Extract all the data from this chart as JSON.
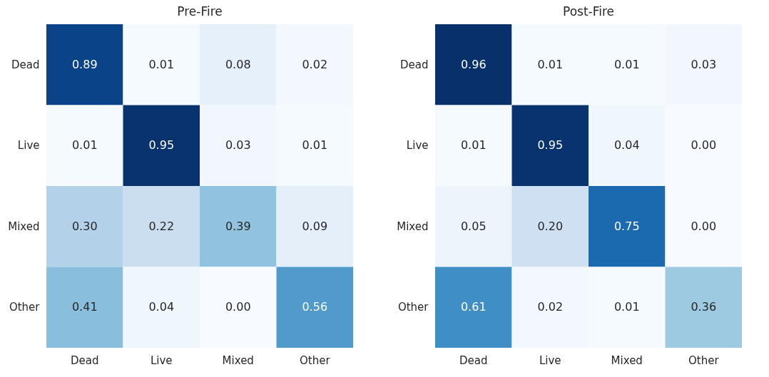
{
  "chart_data": [
    {
      "type": "heatmap",
      "title": "Pre-Fire",
      "categories": [
        "Dead",
        "Live",
        "Mixed",
        "Other"
      ],
      "y_categories": [
        "Dead",
        "Live",
        "Mixed",
        "Other"
      ],
      "cells": [
        [
          0.89,
          0.01,
          0.08,
          0.02
        ],
        [
          0.01,
          0.95,
          0.03,
          0.01
        ],
        [
          0.3,
          0.22,
          0.39,
          0.09
        ],
        [
          0.41,
          0.04,
          0.0,
          0.56
        ]
      ],
      "cell_labels": [
        [
          "0.89",
          "0.01",
          "0.08",
          "0.02"
        ],
        [
          "0.01",
          "0.95",
          "0.03",
          "0.01"
        ],
        [
          "0.30",
          "0.22",
          "0.39",
          "0.09"
        ],
        [
          "0.41",
          "0.04",
          "0.00",
          "0.56"
        ]
      ]
    },
    {
      "type": "heatmap",
      "title": "Post-Fire",
      "categories": [
        "Dead",
        "Live",
        "Mixed",
        "Other"
      ],
      "y_categories": [
        "Dead",
        "Live",
        "Mixed",
        "Other"
      ],
      "cells": [
        [
          0.96,
          0.01,
          0.01,
          0.03
        ],
        [
          0.01,
          0.95,
          0.04,
          0.0
        ],
        [
          0.05,
          0.2,
          0.75,
          0.0
        ],
        [
          0.61,
          0.02,
          0.01,
          0.36
        ]
      ],
      "cell_labels": [
        [
          "0.96",
          "0.01",
          "0.01",
          "0.03"
        ],
        [
          "0.01",
          "0.95",
          "0.04",
          "0.00"
        ],
        [
          "0.05",
          "0.20",
          "0.75",
          "0.00"
        ],
        [
          "0.61",
          "0.02",
          "0.01",
          "0.36"
        ]
      ]
    }
  ]
}
